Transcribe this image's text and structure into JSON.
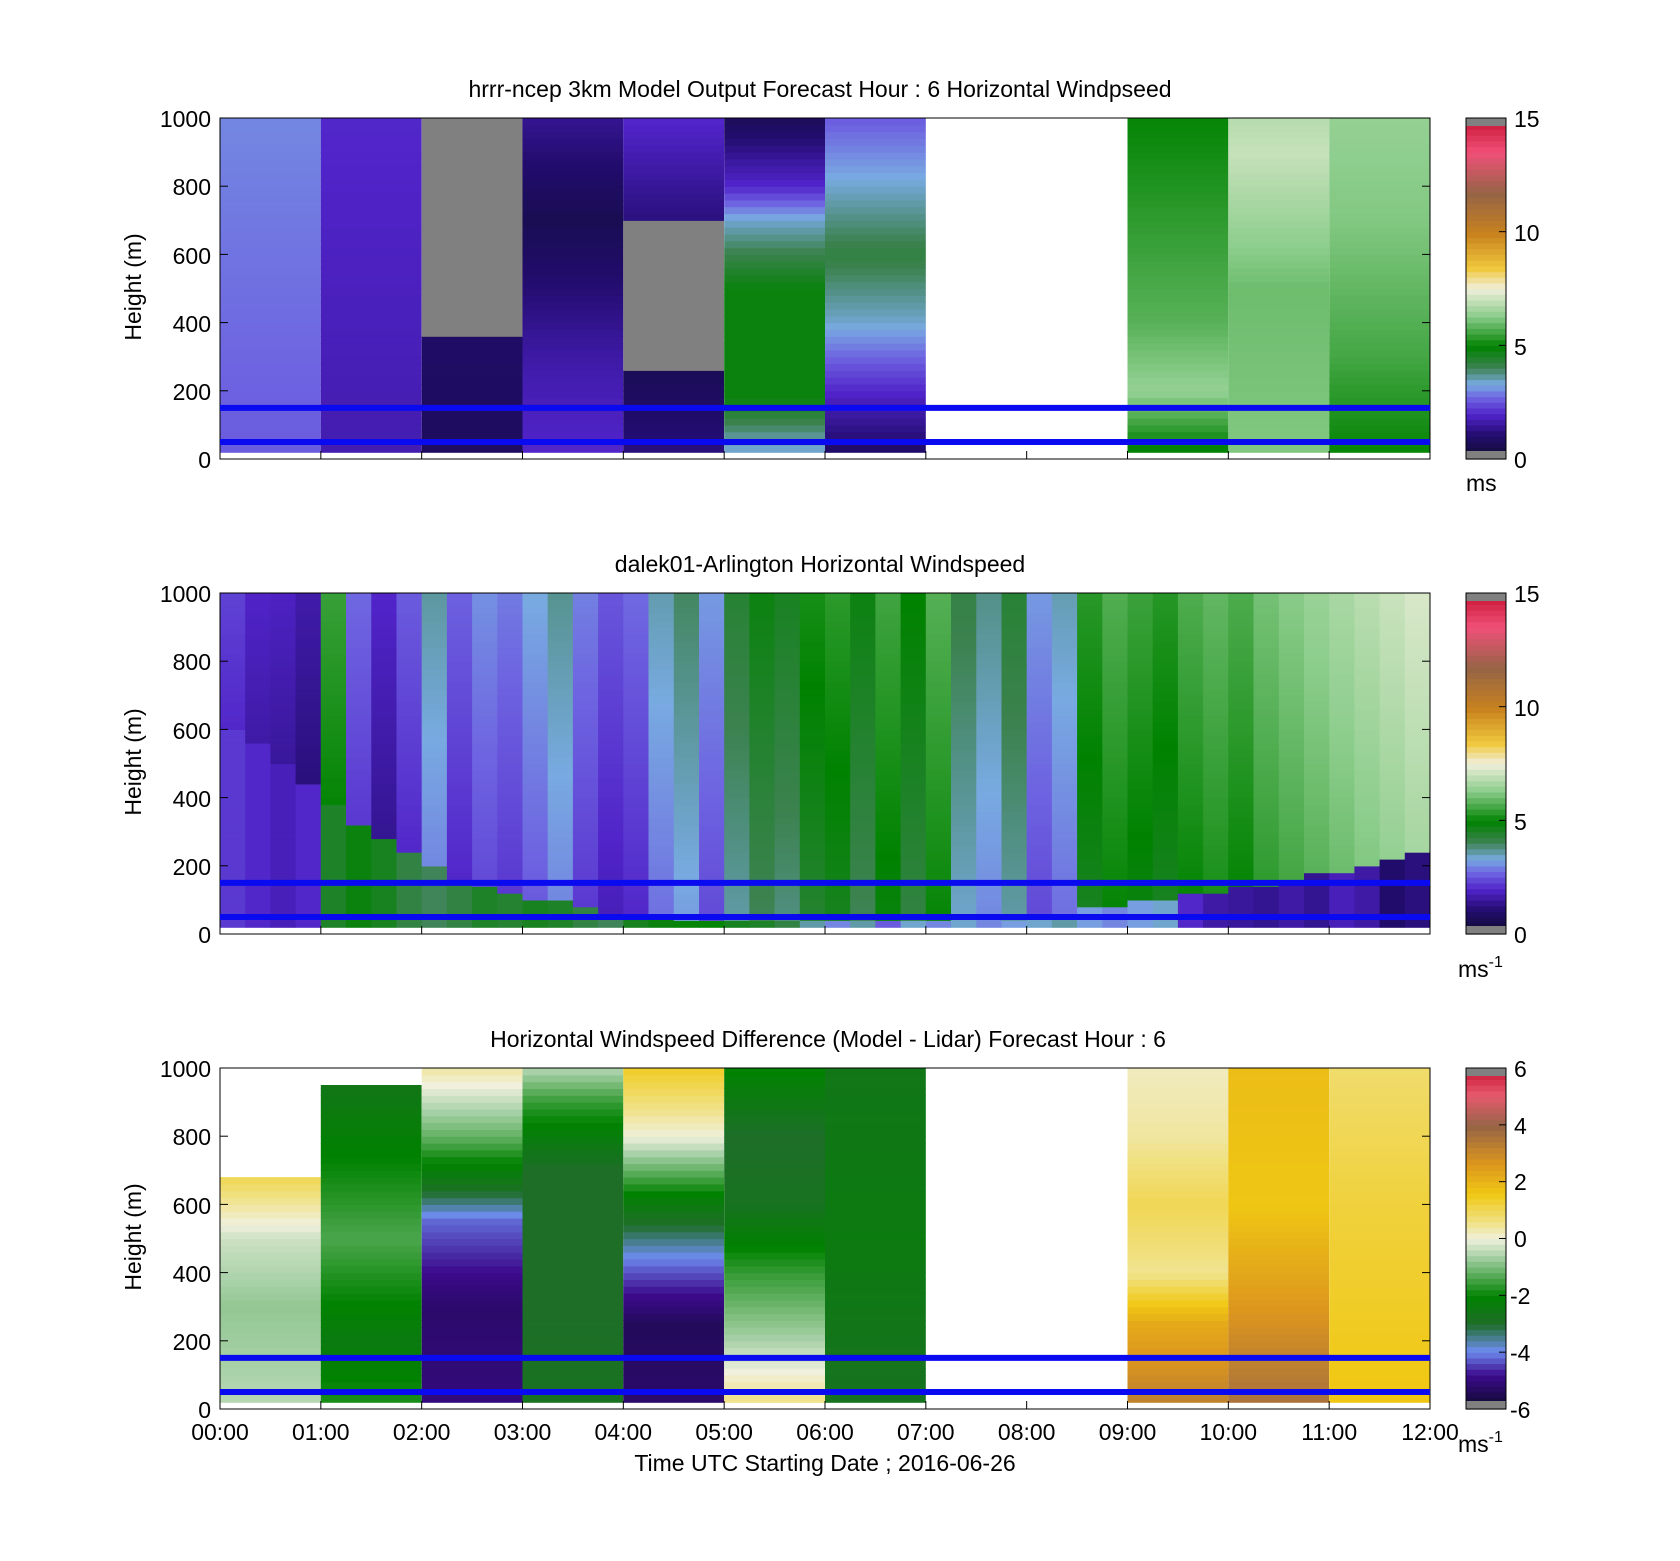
{
  "chart_data": [
    {
      "type": "heatmap",
      "title": "hrrr-ncep 3km Model Output   Forecast Hour : 6 Horizontal Windpseed",
      "ylabel": "Height (m)",
      "ylim": [
        0,
        1000
      ],
      "yticks": [
        "0",
        "200",
        "400",
        "600",
        "800",
        "1000"
      ],
      "xlim": [
        "00:00",
        "12:00"
      ],
      "colorbar": {
        "unit": "ms",
        "unit_superscript": "",
        "range": [
          0,
          15
        ],
        "ticks": [
          "0",
          "5",
          "10",
          "15"
        ],
        "scale": "windspeed"
      },
      "reference_lines_m": [
        150,
        50
      ],
      "columns": [
        {
          "start": "00:00",
          "end": "01:00",
          "profile": [
            [
              20,
              2.6
            ],
            [
              1000,
              3.0
            ]
          ]
        },
        {
          "start": "01:00",
          "end": "02:00",
          "profile": [
            [
              20,
              1.7
            ],
            [
              1000,
              2.0
            ]
          ]
        },
        {
          "start": "02:00",
          "end": "03:00",
          "profile": [
            [
              20,
              0.8
            ],
            [
              350,
              0.9
            ],
            [
              800,
              null
            ],
            [
              1000,
              0.6
            ]
          ]
        },
        {
          "start": "03:00",
          "end": "04:00",
          "profile": [
            [
              20,
              2.0
            ],
            [
              300,
              1.6
            ],
            [
              700,
              0.6
            ],
            [
              1000,
              1.4
            ]
          ]
        },
        {
          "start": "04:00",
          "end": "05:00",
          "profile": [
            [
              20,
              1.2
            ],
            [
              250,
              0.7
            ],
            [
              350,
              null
            ],
            [
              700,
              1.2
            ],
            [
              1000,
              2.0
            ]
          ]
        },
        {
          "start": "05:00",
          "end": "06:00",
          "profile": [
            [
              40,
              3.4
            ],
            [
              180,
              4.8
            ],
            [
              500,
              4.8
            ],
            [
              700,
              3.4
            ],
            [
              800,
              2.0
            ],
            [
              1000,
              0.7
            ]
          ]
        },
        {
          "start": "06:00",
          "end": "07:00",
          "profile": [
            [
              40,
              1.0
            ],
            [
              200,
              2.0
            ],
            [
              400,
              3.4
            ],
            [
              600,
              4.2
            ],
            [
              800,
              3.4
            ],
            [
              1000,
              2.6
            ]
          ]
        },
        {
          "start": "09:00",
          "end": "10:00",
          "profile": [
            [
              20,
              4.8
            ],
            [
              200,
              6.4
            ],
            [
              400,
              5.8
            ],
            [
              1000,
              5.0
            ]
          ]
        },
        {
          "start": "10:00",
          "end": "11:00",
          "profile": [
            [
              20,
              6.2
            ],
            [
              500,
              6.0
            ],
            [
              900,
              7.0
            ],
            [
              1000,
              6.8
            ]
          ]
        },
        {
          "start": "11:00",
          "end": "12:00",
          "profile": [
            [
              20,
              5.0
            ],
            [
              300,
              5.6
            ],
            [
              700,
              6.2
            ],
            [
              1000,
              6.4
            ]
          ]
        }
      ]
    },
    {
      "type": "heatmap",
      "title": "dalek01-Arlington  Horizontal Windspeed",
      "ylabel": "Height (m)",
      "ylim": [
        0,
        1000
      ],
      "yticks": [
        "0",
        "200",
        "400",
        "600",
        "800",
        "1000"
      ],
      "xlim": [
        "00:00",
        "11:50"
      ],
      "colorbar": {
        "unit": "ms",
        "unit_superscript": "-1",
        "range": [
          0,
          15
        ],
        "ticks": [
          "0",
          "5",
          "10",
          "15"
        ],
        "scale": "windspeed"
      },
      "reference_lines_m": [
        150,
        50
      ],
      "profiles_every_min": 15,
      "boundary_layer_top_m": [
        600,
        550,
        500,
        440,
        380,
        320,
        270,
        230,
        190,
        160,
        140,
        120,
        100,
        85,
        70,
        60,
        50,
        45,
        40,
        35,
        30,
        30,
        30,
        30,
        30,
        30,
        30,
        30,
        30,
        30,
        30,
        40,
        50,
        60,
        70,
        80,
        90,
        100,
        110,
        120,
        130,
        140,
        150,
        165,
        180,
        195,
        210,
        225
      ],
      "lower_layer_speed": [
        2.2,
        2.0,
        1.8,
        2.0,
        4.5,
        4.8,
        4.6,
        4.2,
        4.0,
        4.2,
        4.5,
        4.4,
        4.6,
        4.5,
        4.2,
        4.0,
        4.6,
        4.8,
        5.0,
        5.0,
        4.6,
        4.5,
        4.2,
        3.6,
        3.0,
        3.6,
        2.6,
        3.4,
        3.0,
        3.4,
        3.0,
        3.2,
        3.4,
        3.6,
        3.2,
        3.0,
        3.2,
        3.4,
        2.0,
        1.6,
        1.5,
        1.4,
        1.6,
        1.4,
        1.8,
        1.6,
        1.0,
        1.2
      ],
      "upper_layer_speed": [
        2.0,
        1.6,
        1.5,
        1.2,
        5.0,
        2.2,
        1.4,
        2.0,
        3.0,
        2.0,
        2.4,
        2.2,
        2.6,
        3.0,
        2.2,
        1.8,
        2.0,
        2.8,
        3.2,
        2.4,
        3.6,
        4.0,
        3.8,
        4.4,
        4.6,
        4.0,
        4.8,
        4.2,
        5.0,
        3.4,
        3.0,
        3.6,
        2.4,
        2.8,
        4.6,
        5.0,
        4.8,
        4.6,
        5.0,
        5.2,
        5.0,
        5.4,
        5.6,
        5.8,
        6.0,
        6.2,
        6.4,
        6.6
      ]
    },
    {
      "type": "heatmap",
      "title": "Horizontal Windspeed Difference (Model - Lidar) Forecast Hour : 6",
      "xlabel": "Time UTC  Starting Date ; 2016-06-26",
      "ylabel": "Height (m)",
      "ylim": [
        0,
        1000
      ],
      "yticks": [
        "0",
        "200",
        "400",
        "600",
        "800",
        "1000"
      ],
      "xticks": [
        "00:00",
        "01:00",
        "02:00",
        "03:00",
        "04:00",
        "05:00",
        "06:00",
        "07:00",
        "08:00",
        "09:00",
        "10:00",
        "11:00",
        "12:00"
      ],
      "colorbar": {
        "unit": "ms",
        "unit_superscript": "-1",
        "range": [
          -6,
          6
        ],
        "ticks": [
          "-6",
          "-4",
          "-2",
          "0",
          "2",
          "4",
          "6"
        ],
        "scale": "difference"
      },
      "reference_lines_m": [
        150,
        50
      ],
      "columns": [
        {
          "start": "00:00",
          "end": "01:00",
          "top_m": 680,
          "profile": [
            [
              20,
              -0.5
            ],
            [
              300,
              -0.8
            ],
            [
              500,
              -0.3
            ],
            [
              680,
              1.0
            ]
          ]
        },
        {
          "start": "01:00",
          "end": "02:00",
          "top_m": 950,
          "profile": [
            [
              20,
              -1.8
            ],
            [
              200,
              -2.4
            ],
            [
              500,
              -1.4
            ],
            [
              950,
              -2.6
            ]
          ]
        },
        {
          "start": "02:00",
          "end": "03:00",
          "profile": [
            [
              20,
              -5.0
            ],
            [
              300,
              -5.2
            ],
            [
              550,
              -4.2
            ],
            [
              650,
              -2.8
            ],
            [
              800,
              -1.2
            ],
            [
              1000,
              0.4
            ]
          ]
        },
        {
          "start": "03:00",
          "end": "04:00",
          "profile": [
            [
              20,
              -2.8
            ],
            [
              300,
              -3.0
            ],
            [
              700,
              -3.0
            ],
            [
              900,
              -1.6
            ],
            [
              1000,
              -0.5
            ]
          ]
        },
        {
          "start": "04:00",
          "end": "05:00",
          "profile": [
            [
              20,
              -5.2
            ],
            [
              250,
              -5.4
            ],
            [
              420,
              -4.2
            ],
            [
              600,
              -2.4
            ],
            [
              800,
              0.0
            ],
            [
              1000,
              1.4
            ]
          ]
        },
        {
          "start": "05:00",
          "end": "06:00",
          "profile": [
            [
              20,
              0.6
            ],
            [
              200,
              -0.6
            ],
            [
              400,
              -1.6
            ],
            [
              600,
              -2.8
            ],
            [
              800,
              -3.0
            ],
            [
              1000,
              -2.0
            ]
          ]
        },
        {
          "start": "06:00",
          "end": "07:00",
          "profile": [
            [
              20,
              -2.8
            ],
            [
              500,
              -2.4
            ],
            [
              1000,
              -2.6
            ]
          ]
        },
        {
          "start": "09:00",
          "end": "10:00",
          "profile": [
            [
              20,
              3.2
            ],
            [
              250,
              2.2
            ],
            [
              400,
              0.5
            ],
            [
              600,
              1.0
            ],
            [
              800,
              0.4
            ],
            [
              1000,
              0.2
            ]
          ]
        },
        {
          "start": "10:00",
          "end": "11:00",
          "profile": [
            [
              20,
              3.6
            ],
            [
              300,
              2.6
            ],
            [
              600,
              1.6
            ],
            [
              1000,
              1.8
            ]
          ]
        },
        {
          "start": "11:00",
          "end": "12:00",
          "profile": [
            [
              20,
              1.6
            ],
            [
              300,
              1.4
            ],
            [
              600,
              1.2
            ],
            [
              1000,
              0.8
            ]
          ]
        }
      ]
    }
  ]
}
